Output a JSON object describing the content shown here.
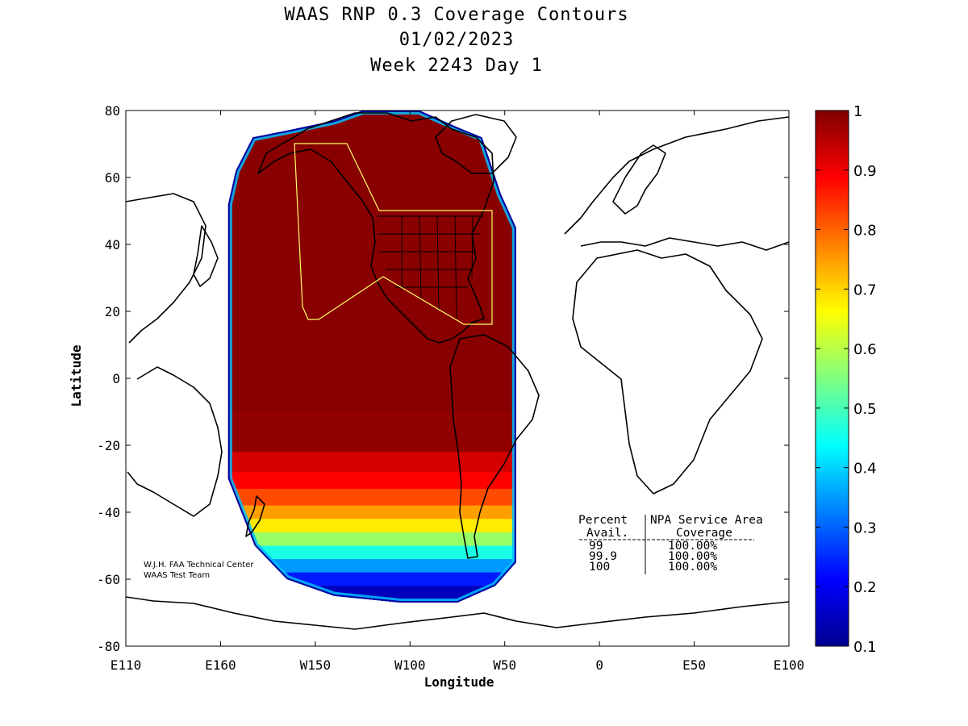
{
  "chart_data": {
    "type": "heatmap",
    "title_lines": [
      "WAAS RNP 0.3 Coverage Contours",
      "01/02/2023",
      "Week 2243 Day 1"
    ],
    "xlabel": "Longitude",
    "ylabel": "Latitude",
    "x_range_deg_east": [
      -250,
      100
    ],
    "y_range_deg": [
      -80,
      80
    ],
    "x_ticks": [
      {
        "value": -250,
        "label": "E110"
      },
      {
        "value": -200,
        "label": "E160"
      },
      {
        "value": -150,
        "label": "W150"
      },
      {
        "value": -100,
        "label": "W100"
      },
      {
        "value": -50,
        "label": "W50"
      },
      {
        "value": 0,
        "label": "0"
      },
      {
        "value": 50,
        "label": "E50"
      },
      {
        "value": 100,
        "label": "E100"
      }
    ],
    "y_ticks": [
      {
        "value": 80,
        "label": "80"
      },
      {
        "value": 60,
        "label": "60"
      },
      {
        "value": 40,
        "label": "40"
      },
      {
        "value": 20,
        "label": "20"
      },
      {
        "value": 0,
        "label": "0"
      },
      {
        "value": -20,
        "label": "-20"
      },
      {
        "value": -40,
        "label": "-40"
      },
      {
        "value": -60,
        "label": "-60"
      },
      {
        "value": -80,
        "label": "-80"
      }
    ],
    "colorbar": {
      "range": [
        0.1,
        1
      ],
      "ticks": [
        {
          "value": 1,
          "label": "1"
        },
        {
          "value": 0.9,
          "label": "0.9"
        },
        {
          "value": 0.8,
          "label": "0.8"
        },
        {
          "value": 0.7,
          "label": "0.7"
        },
        {
          "value": 0.6,
          "label": "0.6"
        },
        {
          "value": 0.5,
          "label": "0.5"
        },
        {
          "value": 0.4,
          "label": "0.4"
        },
        {
          "value": 0.3,
          "label": "0.3"
        },
        {
          "value": 0.2,
          "label": "0.2"
        },
        {
          "value": 0.1,
          "label": "0.1"
        }
      ],
      "colors": [
        "#00008f",
        "#0000ff",
        "#00a0ff",
        "#00ffff",
        "#80ff80",
        "#ffff00",
        "#ff9000",
        "#ff0000",
        "#800000"
      ]
    },
    "coverage_band_lat_bounds": [
      {
        "lat_top": -10,
        "value": 0.98
      },
      {
        "lat_top": -22,
        "value": 0.9
      },
      {
        "lat_top": -28,
        "value": 0.85
      },
      {
        "lat_top": -33,
        "value": 0.78
      },
      {
        "lat_top": -38,
        "value": 0.7
      },
      {
        "lat_top": -42,
        "value": 0.62
      },
      {
        "lat_top": -46,
        "value": 0.52
      },
      {
        "lat_top": -50,
        "value": 0.42
      },
      {
        "lat_top": -54,
        "value": 0.32
      },
      {
        "lat_top": -58,
        "value": 0.22
      },
      {
        "lat_top": -62,
        "value": 0.14
      }
    ],
    "legend_placement": "right colorbar",
    "grid": false
  },
  "annotation": {
    "line1": "W.J.H. FAA Technical Center",
    "line2": "WAAS Test Team"
  },
  "stats_table": {
    "header_col1": "Percent",
    "header_col2": "NPA Service Area",
    "subheader_col1": "Avail.",
    "subheader_col2": "Coverage",
    "rows": [
      {
        "avail": "99",
        "coverage": "100.00%"
      },
      {
        "avail": "99.9",
        "coverage": "100.00%"
      },
      {
        "avail": "100",
        "coverage": "100.00%"
      }
    ]
  }
}
